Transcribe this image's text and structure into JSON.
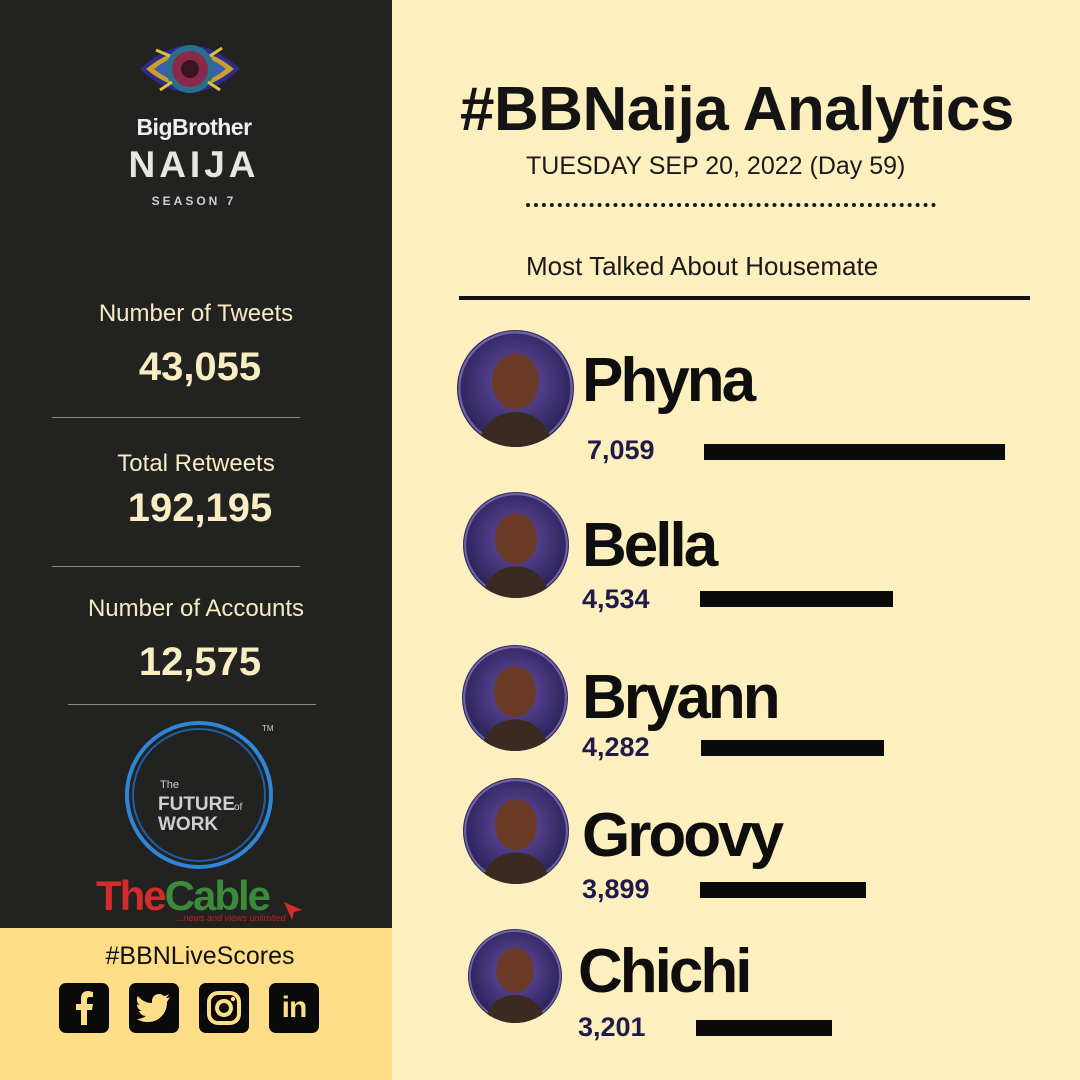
{
  "brand": {
    "show_line1": "BigBrother",
    "show_line2": "NAIJA",
    "show_line3": "SEASON 7"
  },
  "stats": [
    {
      "label": "Number of  Tweets",
      "value": "43,055"
    },
    {
      "label": "Total Retweets",
      "value": "192,195"
    },
    {
      "label": "Number of Accounts",
      "value": "12,575"
    }
  ],
  "partner": {
    "fow_line1": "The",
    "fow_line2": "FUTURE",
    "fow_line2b": "of",
    "fow_line3": "WORK",
    "tm": "TM",
    "cable_the": "The",
    "cable_cable": "Cable",
    "cable_tag": "...news and views unlimited"
  },
  "footer": {
    "hashtag": "#BBNLiveScores",
    "socials": [
      "facebook-icon",
      "twitter-icon",
      "instagram-icon",
      "linkedin-icon"
    ],
    "linkedin_text": "in"
  },
  "header": {
    "title": "#BBNaija Analytics",
    "date": "TUESDAY SEP 20, 2022 (Day 59)",
    "section": "Most Talked About Housemate"
  },
  "colors": {
    "sidebar": "#222220",
    "background": "#FEF0BE",
    "footer": "#FDDE86",
    "bar": "#0A0A0A",
    "count": "#1F1A4A"
  },
  "chart_data": {
    "type": "bar",
    "orientation": "horizontal",
    "title": "Most Talked About Housemate",
    "categories": [
      "Phyna",
      "Bella",
      "Bryann",
      "Groovy",
      "Chichi"
    ],
    "values": [
      7059,
      4534,
      4282,
      3899,
      3201
    ],
    "labels": [
      "7,059",
      "4,534",
      "4,282",
      "3,899",
      "3,201"
    ]
  }
}
